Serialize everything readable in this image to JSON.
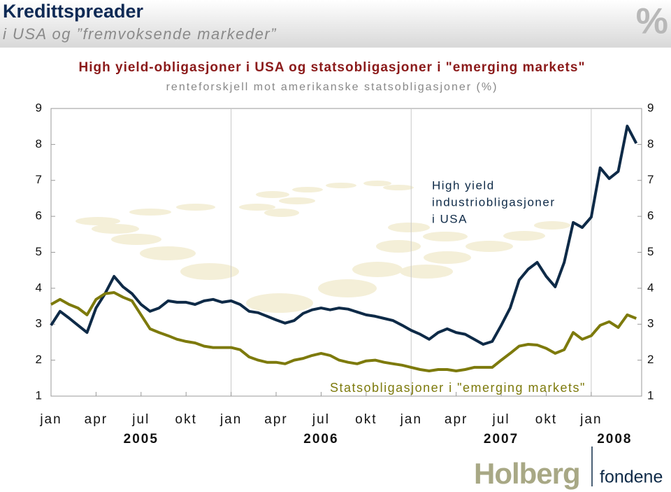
{
  "header": {
    "title": "Kredittspreader",
    "subtitle": "i USA og ”fremvoksende markeder”",
    "logo": "%"
  },
  "footer": {
    "brand": "Holberg",
    "brand_sub": "fondene"
  },
  "chart_data": {
    "type": "line",
    "title": "High yield-obligasjoner i USA og statsobligasjoner i \"emerging markets\"",
    "subtitle": "renteforskjell mot amerikanske statsobligasjoner (%)",
    "annotations": [
      [
        "High yield",
        "industriobligasjoner",
        "i USA"
      ],
      [
        "Statsobligasjoner i \"emerging markets\""
      ]
    ],
    "x": [
      2005,
      2005.05,
      2005.1,
      2005.15,
      2005.2,
      2005.25,
      2005.3,
      2005.35,
      2005.4,
      2005.45,
      2005.5,
      2005.55,
      2005.6,
      2005.65,
      2005.7,
      2005.75,
      2005.8,
      2005.85,
      2005.9,
      2005.95,
      2006,
      2006.05,
      2006.1,
      2006.15,
      2006.2,
      2006.25,
      2006.3,
      2006.35,
      2006.4,
      2006.45,
      2006.5,
      2006.55,
      2006.6,
      2006.65,
      2006.7,
      2006.75,
      2006.8,
      2006.85,
      2006.9,
      2006.95,
      2007,
      2007.05,
      2007.1,
      2007.15,
      2007.2,
      2007.25,
      2007.3,
      2007.35,
      2007.4,
      2007.45,
      2007.5,
      2007.55,
      2007.6,
      2007.65,
      2007.7,
      2007.75,
      2007.8,
      2007.85,
      2007.9,
      2007.95,
      2008,
      2008.05,
      2008.1,
      2008.15,
      2008.2,
      2008.25
    ],
    "series": [
      {
        "name": "High yield industriobligasjoner i USA",
        "color": "#0e2a47",
        "values": [
          2.97,
          3.36,
          3.17,
          2.97,
          2.77,
          3.45,
          3.85,
          4.33,
          4.04,
          3.85,
          3.55,
          3.36,
          3.45,
          3.65,
          3.61,
          3.61,
          3.55,
          3.65,
          3.69,
          3.61,
          3.65,
          3.55,
          3.36,
          3.32,
          3.22,
          3.12,
          3.03,
          3.1,
          3.3,
          3.4,
          3.45,
          3.4,
          3.45,
          3.42,
          3.34,
          3.26,
          3.22,
          3.16,
          3.1,
          2.97,
          2.83,
          2.72,
          2.58,
          2.77,
          2.87,
          2.77,
          2.72,
          2.58,
          2.44,
          2.52,
          2.97,
          3.45,
          4.23,
          4.53,
          4.72,
          4.33,
          4.04,
          4.72,
          5.83,
          5.69,
          5.98,
          7.35,
          7.05,
          7.25,
          8.51,
          8.03
        ]
      },
      {
        "name": "Statsobligasjoner i \"emerging markets\"",
        "color": "#7d7a0c",
        "values": [
          3.55,
          3.69,
          3.55,
          3.45,
          3.26,
          3.69,
          3.85,
          3.88,
          3.75,
          3.65,
          3.26,
          2.87,
          2.77,
          2.68,
          2.58,
          2.52,
          2.48,
          2.39,
          2.35,
          2.35,
          2.35,
          2.29,
          2.09,
          2.0,
          1.94,
          1.94,
          1.9,
          2.0,
          2.05,
          2.13,
          2.19,
          2.13,
          2.0,
          1.94,
          1.9,
          1.98,
          2.0,
          1.94,
          1.9,
          1.86,
          1.8,
          1.74,
          1.7,
          1.74,
          1.74,
          1.7,
          1.74,
          1.8,
          1.8,
          1.8,
          2.0,
          2.19,
          2.39,
          2.44,
          2.42,
          2.33,
          2.19,
          2.29,
          2.77,
          2.58,
          2.68,
          2.97,
          3.07,
          2.91,
          3.26,
          3.16
        ]
      }
    ],
    "xlim": [
      2005,
      2008.28
    ],
    "xticks": [
      {
        "value": 2005,
        "label": "jan"
      },
      {
        "value": 2005.25,
        "label": "apr"
      },
      {
        "value": 2005.5,
        "label": "jul"
      },
      {
        "value": 2005.75,
        "label": "okt"
      },
      {
        "value": 2006,
        "label": "jan"
      },
      {
        "value": 2006.25,
        "label": "apr"
      },
      {
        "value": 2006.5,
        "label": "jul"
      },
      {
        "value": 2006.75,
        "label": "okt"
      },
      {
        "value": 2007,
        "label": "jan"
      },
      {
        "value": 2007.25,
        "label": "apr"
      },
      {
        "value": 2007.5,
        "label": "jul"
      },
      {
        "value": 2007.75,
        "label": "okt"
      },
      {
        "value": 2008,
        "label": "jan"
      }
    ],
    "year_labels": [
      {
        "value": 2005.5,
        "label": "2005"
      },
      {
        "value": 2006.5,
        "label": "2006"
      },
      {
        "value": 2007.5,
        "label": "2007"
      },
      {
        "value": 2008.13,
        "label": "2008"
      }
    ],
    "ylim": [
      1,
      9
    ],
    "yticks": [
      1,
      2,
      3,
      4,
      5,
      6,
      7,
      8,
      9
    ],
    "y2lim": [
      1,
      9
    ],
    "y2ticks": [
      1,
      2,
      3,
      4,
      5,
      6,
      7,
      8,
      9
    ],
    "year_grid": [
      2006,
      2007,
      2008
    ]
  }
}
